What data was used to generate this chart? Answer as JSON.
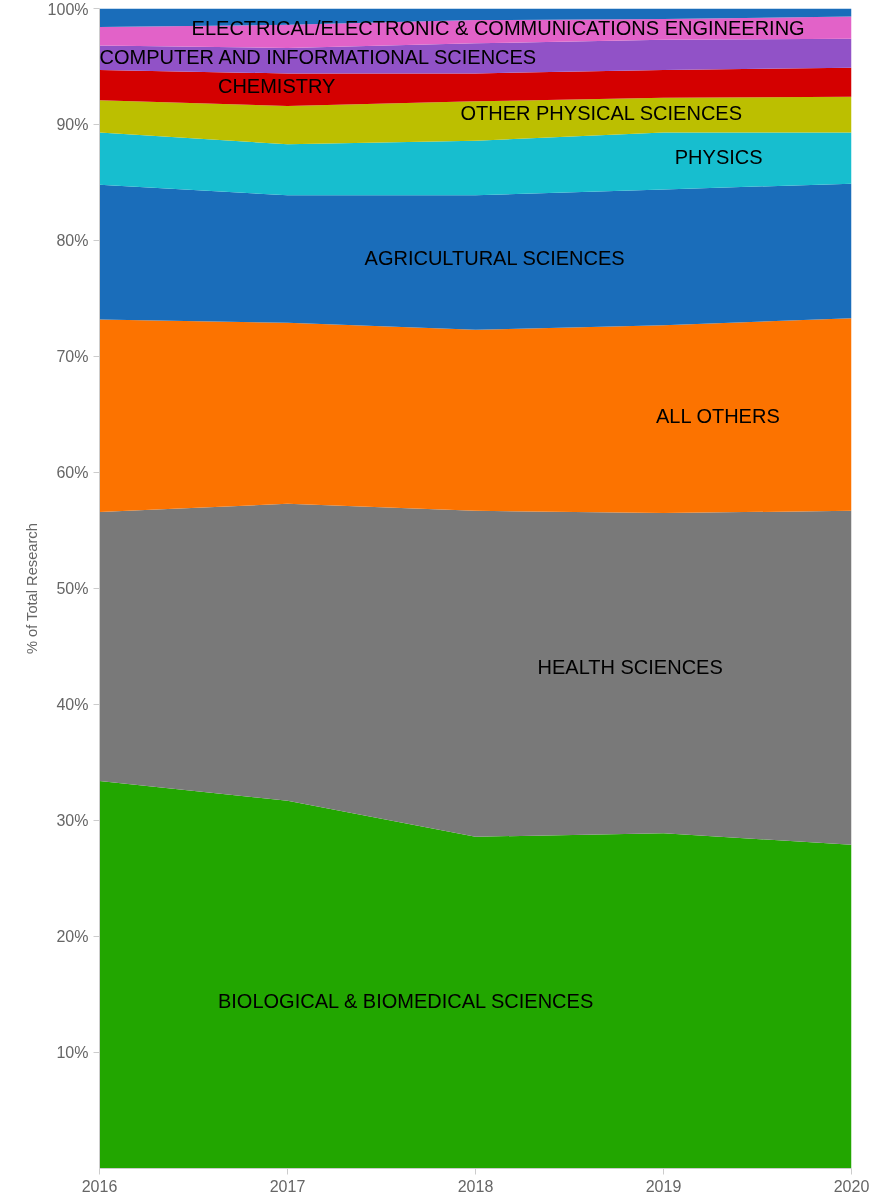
{
  "chart_data": {
    "type": "area",
    "stacked": true,
    "ylabel": "% of Total Research",
    "x": [
      2016,
      2017,
      2018,
      2019,
      2020
    ],
    "xlim": [
      2016,
      2020
    ],
    "xticks": [
      2016,
      2017,
      2018,
      2019,
      2020
    ],
    "ylim": [
      0,
      100
    ],
    "yticks": [
      {
        "value": 10,
        "label": "10%"
      },
      {
        "value": 20,
        "label": "20%"
      },
      {
        "value": 30,
        "label": "30%"
      },
      {
        "value": 40,
        "label": "40%"
      },
      {
        "value": 50,
        "label": "50%"
      },
      {
        "value": 60,
        "label": "60%"
      },
      {
        "value": 70,
        "label": "70%"
      },
      {
        "value": 80,
        "label": "80%"
      },
      {
        "value": 90,
        "label": "90%"
      },
      {
        "value": 100,
        "label": "100%"
      }
    ],
    "grid": false,
    "series": [
      {
        "name": "BIOLOGICAL & BIOMEDICAL SCIENCES",
        "color": "#22a600",
        "values": [
          33.4,
          31.7,
          28.6,
          28.9,
          27.9
        ]
      },
      {
        "name": "HEALTH SCIENCES",
        "color": "#797979",
        "values": [
          23.2,
          25.6,
          28.1,
          27.6,
          28.8
        ]
      },
      {
        "name": "ALL OTHERS",
        "color": "#fc7300",
        "values": [
          16.6,
          15.6,
          15.6,
          16.2,
          16.6
        ]
      },
      {
        "name": "AGRICULTURAL SCIENCES",
        "color": "#1a6dba",
        "values": [
          11.6,
          11.0,
          11.6,
          11.7,
          11.6
        ]
      },
      {
        "name": "PHYSICS",
        "color": "#17becf",
        "values": [
          4.5,
          4.4,
          4.7,
          4.9,
          4.4
        ]
      },
      {
        "name": "OTHER PHYSICAL SCIENCES",
        "color": "#bcbf00",
        "values": [
          2.8,
          3.3,
          3.4,
          3.0,
          3.1
        ]
      },
      {
        "name": "CHEMISTRY",
        "color": "#d40000",
        "values": [
          2.6,
          2.8,
          2.4,
          2.4,
          2.5
        ]
      },
      {
        "name": "COMPUTER AND INFORMATIONAL SCIENCES",
        "color": "#9152c7",
        "values": [
          2.1,
          2.2,
          2.6,
          2.6,
          2.5
        ]
      },
      {
        "name": "ELECTRICAL/ELECTRONIC & COMMUNICATIONS ENGINEERING",
        "color": "#e262c8",
        "values": [
          1.6,
          2.0,
          2.0,
          1.8,
          1.9
        ]
      },
      {
        "color": "#1a6dba",
        "values": [
          1.6,
          1.4,
          1.0,
          0.9,
          0.7
        ]
      }
    ]
  }
}
